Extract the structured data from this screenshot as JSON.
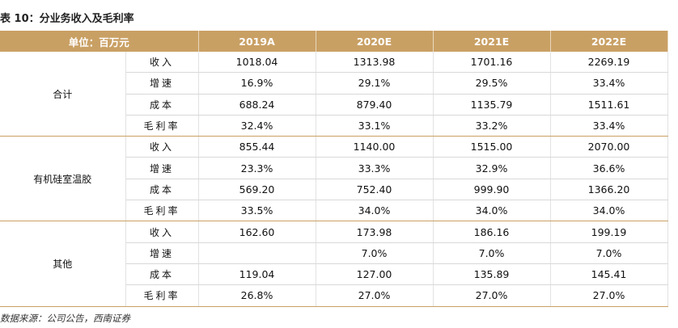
{
  "title": "表 10：分业务收入及毛利率",
  "table": {
    "header": [
      "单位：百万元",
      "2019A",
      "2020E",
      "2021E",
      "2022E"
    ],
    "groups": [
      {
        "name": "合计",
        "rows": [
          {
            "item": "收入",
            "values": [
              "1018.04",
              "1313.98",
              "1701.16",
              "2269.19"
            ]
          },
          {
            "item": "增速",
            "values": [
              "16.9%",
              "29.1%",
              "29.5%",
              "33.4%"
            ]
          },
          {
            "item": "成本",
            "values": [
              "688.24",
              "879.40",
              "1135.79",
              "1511.61"
            ]
          },
          {
            "item": "毛利率",
            "values": [
              "32.4%",
              "33.1%",
              "33.2%",
              "33.4%"
            ]
          }
        ]
      },
      {
        "name": "有机硅室温胶",
        "rows": [
          {
            "item": "收入",
            "values": [
              "855.44",
              "1140.00",
              "1515.00",
              "2070.00"
            ]
          },
          {
            "item": "增速",
            "values": [
              "23.3%",
              "33.3%",
              "32.9%",
              "36.6%"
            ]
          },
          {
            "item": "成本",
            "values": [
              "569.20",
              "752.40",
              "999.90",
              "1366.20"
            ]
          },
          {
            "item": "毛利率",
            "values": [
              "33.5%",
              "34.0%",
              "34.0%",
              "34.0%"
            ]
          }
        ]
      },
      {
        "name": "其他",
        "rows": [
          {
            "item": "收入",
            "values": [
              "162.60",
              "173.98",
              "186.16",
              "199.19"
            ]
          },
          {
            "item": "增速",
            "values": [
              null,
              "7.0%",
              "7.0%",
              "7.0%"
            ]
          },
          {
            "item": "成本",
            "values": [
              "119.04",
              "127.00",
              "135.89",
              "145.41"
            ]
          },
          {
            "item": "毛利率",
            "values": [
              "26.8%",
              "27.0%",
              "27.0%",
              "27.0%"
            ]
          }
        ]
      }
    ]
  },
  "source": "数据来源：公司公告，西南证券"
}
